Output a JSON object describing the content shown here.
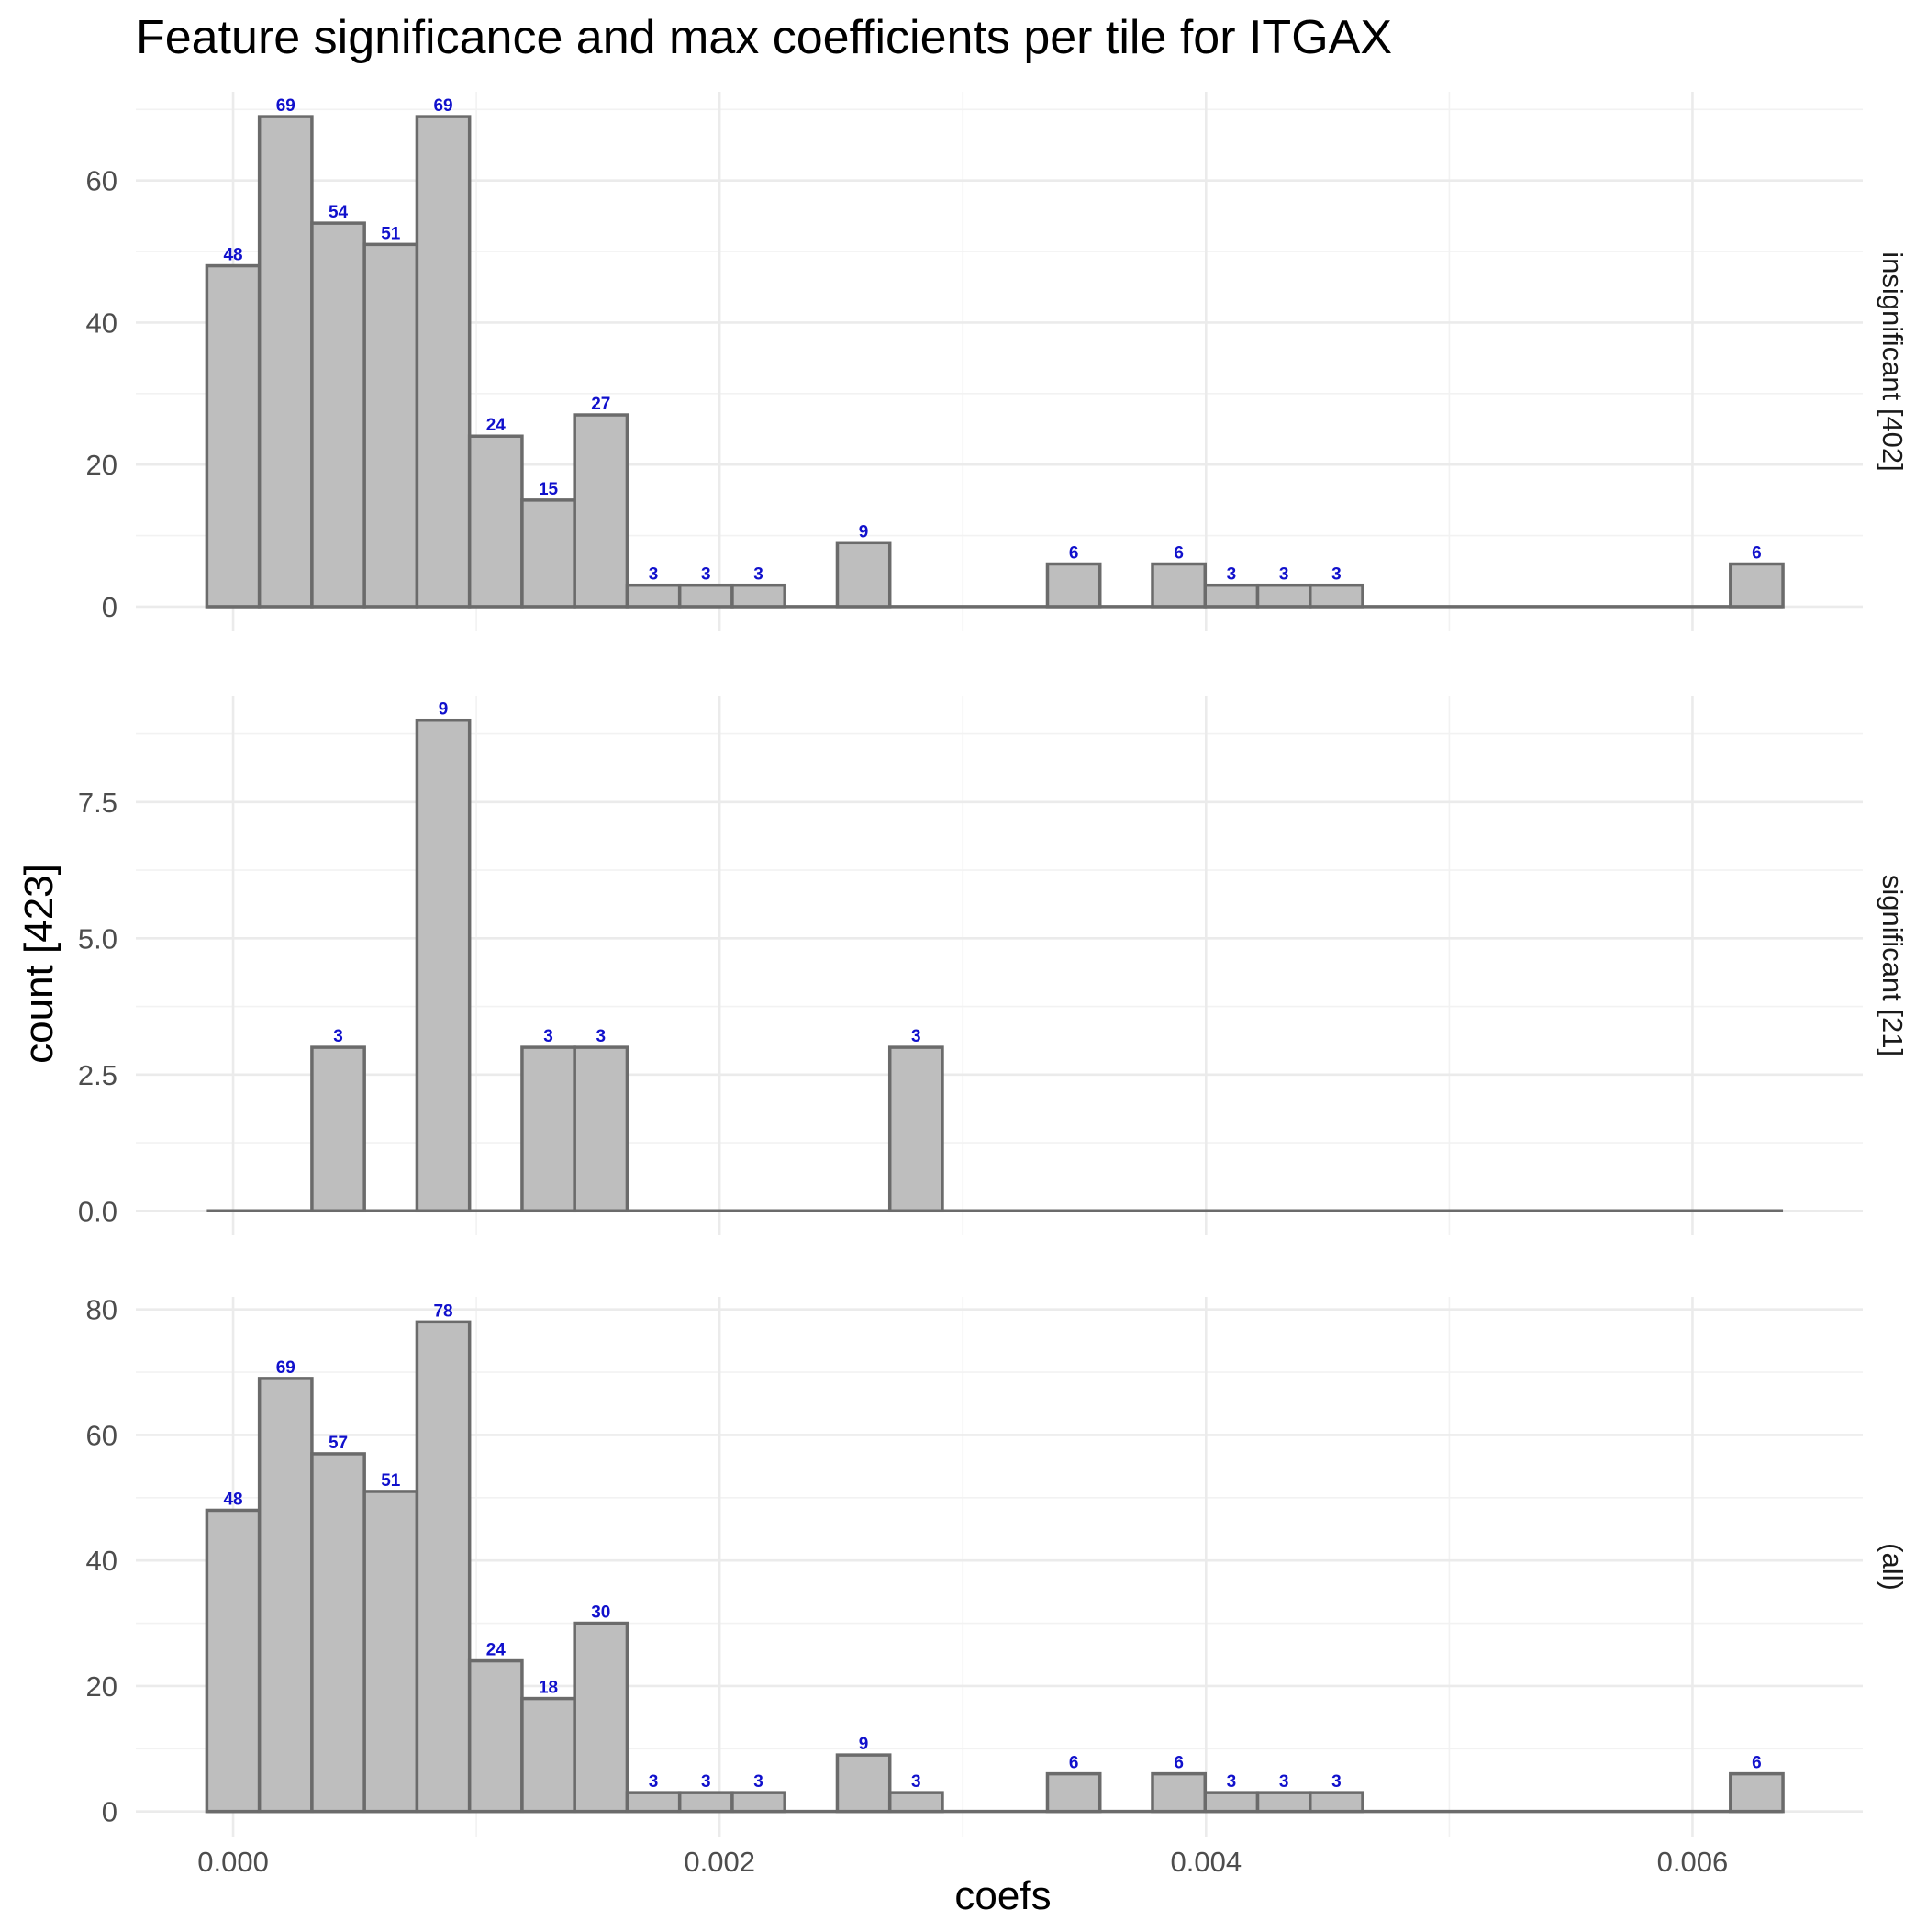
{
  "chart_data": {
    "type": "bar",
    "title": "Feature significance and max coefficients per tile for ITGAX",
    "xlabel": "coefs",
    "ylabel": "count [423]",
    "xlim": [
      -0.0004,
      0.0067
    ],
    "x_ticks": [
      0.0,
      0.002,
      0.004,
      0.006
    ],
    "x_tick_labels": [
      "0.000",
      "0.002",
      "0.004",
      "0.006"
    ],
    "bin_width": 0.000216,
    "bin_centers": [
      0.0,
      0.000216,
      0.000432,
      0.000648,
      0.000864,
      0.00108,
      0.001296,
      0.001512,
      0.001728,
      0.001944,
      0.00216,
      0.002376,
      0.002592,
      0.002808,
      0.003024,
      0.00324,
      0.003456,
      0.003672,
      0.003888,
      0.004104,
      0.00432,
      0.004536,
      0.004752,
      0.004968,
      0.005184,
      0.0054,
      0.005616,
      0.005832,
      0.006048,
      0.006264
    ],
    "panels": [
      {
        "strip_label": "insignificant [402]",
        "ylim": [
          -3.5,
          72.5
        ],
        "y_ticks": [
          0,
          20,
          40,
          60
        ],
        "y_tick_labels": [
          "0",
          "20",
          "40",
          "60"
        ],
        "values": [
          48,
          69,
          54,
          51,
          69,
          24,
          15,
          27,
          3,
          3,
          3,
          0,
          9,
          0,
          0,
          0,
          6,
          0,
          6,
          3,
          3,
          3,
          0,
          0,
          0,
          0,
          0,
          0,
          0,
          6
        ]
      },
      {
        "strip_label": "significant [21]",
        "ylim": [
          -0.45,
          9.45
        ],
        "y_ticks": [
          0.0,
          2.5,
          5.0,
          7.5
        ],
        "y_tick_labels": [
          "0.0",
          "2.5",
          "5.0",
          "7.5"
        ],
        "values": [
          0,
          0,
          3,
          0,
          9,
          0,
          3,
          3,
          0,
          0,
          0,
          0,
          0,
          3,
          0,
          0,
          0,
          0,
          0,
          0,
          0,
          0,
          0,
          0,
          0,
          0,
          0,
          0,
          0,
          0
        ]
      },
      {
        "strip_label": "(all)",
        "ylim": [
          -4,
          82
        ],
        "y_ticks": [
          0,
          20,
          40,
          60,
          80
        ],
        "y_tick_labels": [
          "0",
          "20",
          "40",
          "60",
          "80"
        ],
        "values": [
          48,
          69,
          57,
          51,
          78,
          24,
          18,
          30,
          3,
          3,
          3,
          0,
          9,
          3,
          0,
          0,
          6,
          0,
          6,
          3,
          3,
          3,
          0,
          0,
          0,
          0,
          0,
          0,
          0,
          6
        ]
      }
    ],
    "grid": true,
    "bar_fill": "#bebebe",
    "bar_outline": "#6b6b6b",
    "label_color": "#1010cc"
  }
}
